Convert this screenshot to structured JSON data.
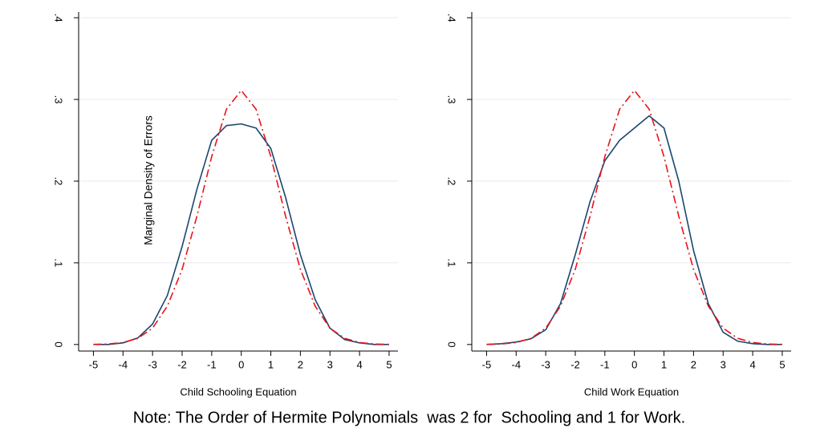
{
  "chart_data": [
    {
      "type": "line",
      "xlabel": "Child Schooling Equation",
      "ylabel": "Marginal Density of Errors",
      "x": [
        -5,
        -4.5,
        -4,
        -3.5,
        -3,
        -2.5,
        -2,
        -1.5,
        -1,
        -0.5,
        0,
        0.5,
        1,
        1.5,
        2,
        2.5,
        3,
        3.5,
        4,
        4.5,
        5
      ],
      "series": [
        {
          "color": "#1a476f",
          "dash": "none",
          "values": [
            0,
            0,
            0.002,
            0.008,
            0.025,
            0.06,
            0.12,
            0.19,
            0.25,
            0.268,
            0.27,
            0.265,
            0.24,
            0.18,
            0.11,
            0.055,
            0.02,
            0.006,
            0.002,
            0,
            0
          ]
        },
        {
          "color": "#e8141a",
          "dash": "10,4,2,4",
          "values": [
            0.0002,
            0.0006,
            0.0024,
            0.0075,
            0.02,
            0.047,
            0.092,
            0.157,
            0.23,
            0.288,
            0.311,
            0.288,
            0.23,
            0.157,
            0.092,
            0.047,
            0.02,
            0.0075,
            0.0024,
            0.0006,
            0.0002
          ]
        }
      ],
      "xlim": [
        -5.5,
        5.3
      ],
      "ylim": [
        -0.008,
        0.407
      ],
      "xticks": [
        -5,
        -4,
        -3,
        -2,
        -1,
        0,
        1,
        2,
        3,
        4,
        5
      ],
      "yticks": [
        0,
        {
          "value": 0.1,
          "label": ".1"
        },
        {
          "value": 0.2,
          "label": ".2"
        },
        {
          "value": 0.3,
          "label": ".3"
        },
        {
          "value": 0.4,
          "label": ".4"
        }
      ],
      "grid": true
    },
    {
      "type": "line",
      "xlabel": "Child Work Equation",
      "x": [
        -5,
        -4.5,
        -4,
        -3.5,
        -3,
        -2.5,
        -2,
        -1.5,
        -1,
        -0.5,
        0,
        0.5,
        1,
        1.5,
        2,
        2.5,
        3,
        3.5,
        4,
        4.5,
        5
      ],
      "series": [
        {
          "color": "#1a476f",
          "dash": "none",
          "values": [
            0,
            0.001,
            0.003,
            0.007,
            0.018,
            0.05,
            0.11,
            0.175,
            0.225,
            0.25,
            0.265,
            0.28,
            0.265,
            0.2,
            0.115,
            0.05,
            0.015,
            0.004,
            0.001,
            0,
            0
          ]
        },
        {
          "color": "#e8141a",
          "dash": "10,4,2,4",
          "values": [
            0.0002,
            0.0006,
            0.0024,
            0.0075,
            0.02,
            0.047,
            0.092,
            0.157,
            0.23,
            0.288,
            0.311,
            0.288,
            0.23,
            0.157,
            0.092,
            0.047,
            0.02,
            0.0075,
            0.0024,
            0.0006,
            0.0002
          ]
        }
      ],
      "xlim": [
        -5.5,
        5.3
      ],
      "ylim": [
        -0.008,
        0.407
      ],
      "xticks": [
        -5,
        -4,
        -3,
        -2,
        -1,
        0,
        1,
        2,
        3,
        4,
        5
      ],
      "yticks": [
        0,
        {
          "value": 0.1,
          "label": ".1"
        },
        {
          "value": 0.2,
          "label": ".2"
        },
        {
          "value": 0.3,
          "label": ".3"
        },
        {
          "value": 0.4,
          "label": ".4"
        }
      ],
      "grid": true
    }
  ],
  "note": "Note: The Order of Hermite Polynomials  was 2 for  Schooling and 1 for Work."
}
